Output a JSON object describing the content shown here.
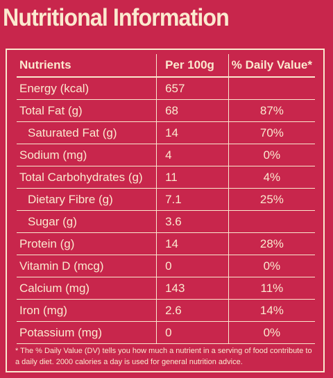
{
  "header": {
    "title": "Nutritional Information"
  },
  "table": {
    "columns": [
      "Nutrients",
      "Per 100g",
      "% Daily Value*"
    ],
    "rows": [
      [
        "Energy (kcal)",
        "657",
        null
      ],
      [
        "Total Fat (g)",
        "68",
        "87%"
      ],
      [
        "Saturated Fat (g)",
        "14",
        "70%"
      ],
      [
        "Sodium (mg)",
        "4",
        "0%"
      ],
      [
        "Total Carbohydrates (g)",
        "11",
        "4%"
      ],
      [
        "Dietary Fibre (g)",
        "7.1",
        "25%"
      ],
      [
        "Sugar (g)",
        "3.6",
        null
      ],
      [
        "Protein (g)",
        "14",
        "28%"
      ],
      [
        "Vitamin D (mcg)",
        "0",
        "0%"
      ],
      [
        "Calcium (mg)",
        "143",
        "11%"
      ],
      [
        "Iron (mg)",
        "2.6",
        "14%"
      ],
      [
        "Potassium (mg)",
        "0",
        "0%"
      ]
    ]
  },
  "footnote": "* The % Daily Value (DV) tells you how much a nutrient in a serving of food contribute to a daily diet. 2000 calories a day is used for general nutrition advice."
}
